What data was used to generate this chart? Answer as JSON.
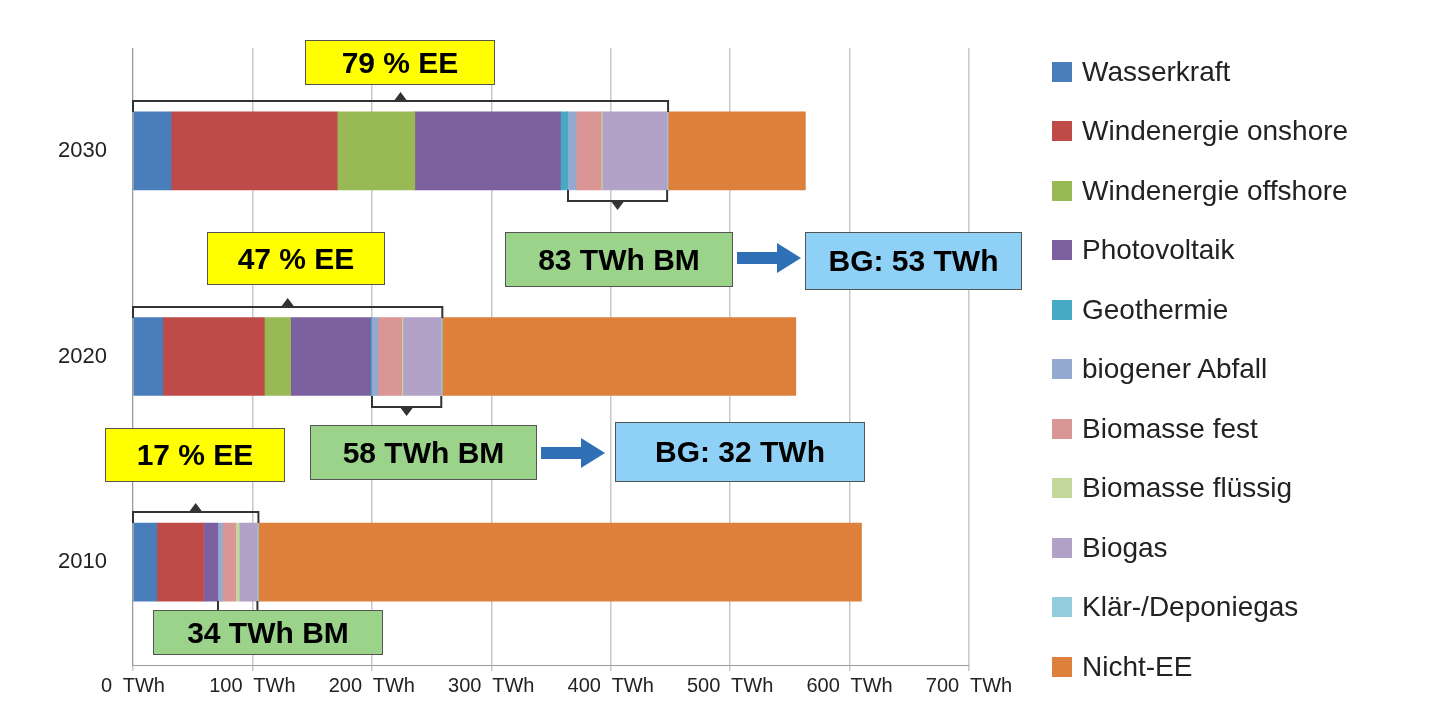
{
  "chart_data": {
    "type": "bar",
    "orientation": "horizontal",
    "stacked": true,
    "categories": [
      "2030",
      "2020",
      "2010"
    ],
    "series": [
      {
        "name": "Wasserkraft",
        "color": "#4a7ebb",
        "values": [
          32,
          25,
          20
        ]
      },
      {
        "name": "Windenergie onshore",
        "color": "#be4b48",
        "values": [
          139,
          85,
          39
        ]
      },
      {
        "name": "Windenergie offshore",
        "color": "#98b954",
        "values": [
          65,
          22,
          0
        ]
      },
      {
        "name": "Photovoltaik",
        "color": "#7d60a0",
        "values": [
          122,
          67,
          12
        ]
      },
      {
        "name": "Geothermie",
        "color": "#46aac5",
        "values": [
          6,
          1,
          0
        ]
      },
      {
        "name": "biogener Abfall",
        "color": "#93a9d0",
        "values": [
          7,
          5,
          4
        ]
      },
      {
        "name": "Biomasse fest",
        "color": "#d99694",
        "values": [
          21,
          20,
          11
        ]
      },
      {
        "name": "Biomasse flüssig",
        "color": "#c3d69b",
        "values": [
          1,
          1,
          3
        ]
      },
      {
        "name": "Biogas",
        "color": "#b3a2c7",
        "values": [
          54,
          32,
          15
        ]
      },
      {
        "name": "Klär-/Deponiegas",
        "color": "#93cddd",
        "values": [
          1,
          1,
          1
        ]
      },
      {
        "name": "Nicht-EE",
        "color": "#dd803c",
        "values": [
          115,
          296,
          505
        ]
      }
    ],
    "xlim": [
      0,
      700
    ],
    "xticks": [
      {
        "value": 0,
        "label": "0  TWh"
      },
      {
        "value": 100,
        "label": "100  TWh"
      },
      {
        "value": 200,
        "label": "200  TWh"
      },
      {
        "value": 300,
        "label": "300  TWh"
      },
      {
        "value": 400,
        "label": "400  TWh"
      },
      {
        "value": 500,
        "label": "500  TWh"
      },
      {
        "value": 600,
        "label": "600  TWh"
      },
      {
        "value": 700,
        "label": "700  TWh"
      }
    ],
    "grid": "x",
    "legend": "right",
    "annotations": [
      "79 % EE",
      "83 TWh BM",
      "BG: 53 TWh",
      "47 % EE",
      "58 TWh BM",
      "BG: 32 TWh",
      "17 % EE",
      "34 TWh BM"
    ]
  }
}
